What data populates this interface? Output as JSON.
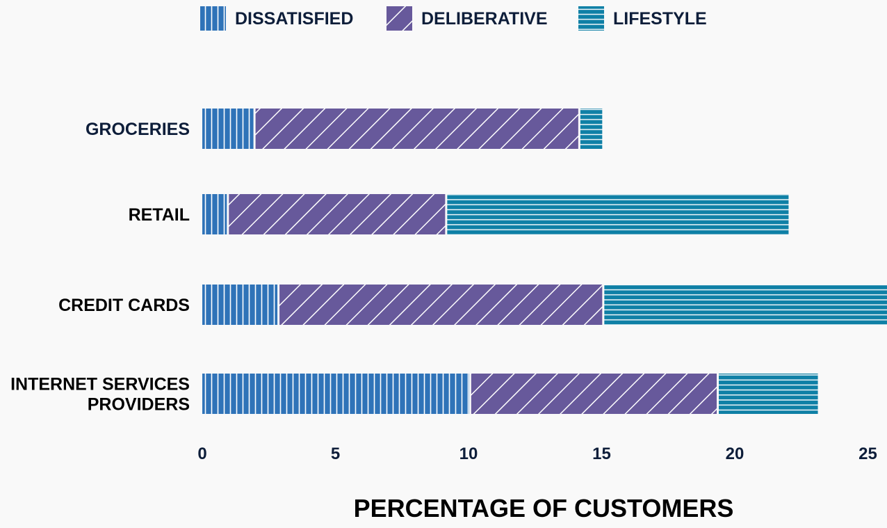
{
  "chart_data": {
    "type": "bar",
    "orientation": "horizontal",
    "stacked": true,
    "title": "",
    "xlabel": "PERCENTAGE OF CUSTOMERS",
    "ylabel": "",
    "xlim": [
      0,
      25.6
    ],
    "xticks": [
      "0",
      "5",
      "10",
      "15",
      "20",
      "25"
    ],
    "categories": [
      [
        "GROCERIES"
      ],
      [
        "RETAIL"
      ],
      [
        "CREDIT CARDS"
      ],
      [
        "INTERNET SERVICES",
        "PROVIDERS"
      ]
    ],
    "category_colors": [
      "#0e1e3a",
      "#000000",
      "#000000",
      "#000000"
    ],
    "series": [
      {
        "name": "DISSATISFIED",
        "color": "#2f73b8",
        "pattern": "vertical-lines",
        "values": [
          2.0,
          1.0,
          2.9,
          10.1
        ]
      },
      {
        "name": "DELIBERATIVE",
        "color": "#67599b",
        "pattern": "diagonal-lines",
        "values": [
          12.2,
          8.2,
          12.2,
          9.3
        ]
      },
      {
        "name": "LIFESTYLE",
        "color": "#0f80a6",
        "pattern": "horizontal-lines",
        "values": [
          0.9,
          12.9,
          10.9,
          3.8
        ]
      }
    ],
    "legend_position": "top",
    "grid": false
  }
}
